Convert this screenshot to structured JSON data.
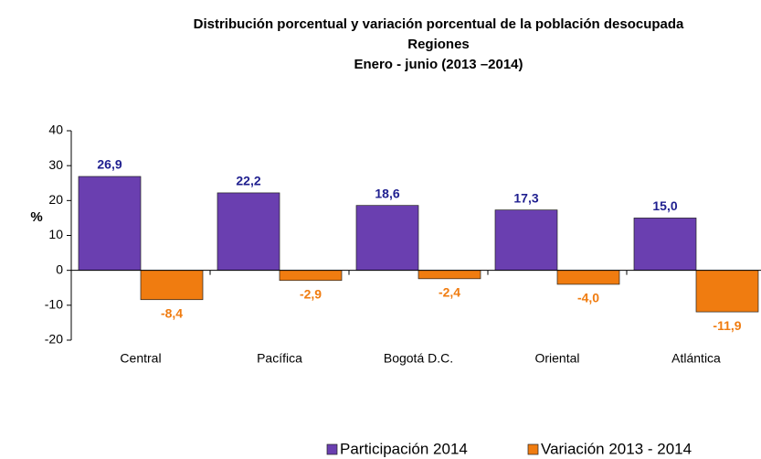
{
  "chart_data": {
    "type": "bar",
    "title": [
      "Distribución porcentual y variación porcentual de la población desocupada",
      "Regiones",
      "Enero - junio (2013 –2014)"
    ],
    "y_label": "%",
    "categories": [
      "Central",
      "Pacífica",
      "Bogotá D.C.",
      "Oriental",
      "Atlántica"
    ],
    "series": [
      {
        "name": "Participación 2014",
        "color": "#6a3fb0",
        "label_color": "#1f1f8f",
        "values": [
          26.9,
          22.2,
          18.6,
          17.3,
          15.0
        ],
        "value_labels": [
          "26,9",
          "22,2",
          "18,6",
          "17,3",
          "15,0"
        ]
      },
      {
        "name": "Variación 2013 - 2014",
        "color": "#f07c10",
        "label_color": "#f07c10",
        "values": [
          -8.4,
          -2.9,
          -2.4,
          -4.0,
          -11.9
        ],
        "value_labels": [
          "-8,4",
          "-2,9",
          "-2,4",
          "-4,0",
          "-11,9"
        ]
      }
    ],
    "ylim": [
      -20,
      40
    ],
    "yticks": [
      -20,
      -10,
      0,
      10,
      20,
      30,
      40
    ],
    "grid": false
  }
}
